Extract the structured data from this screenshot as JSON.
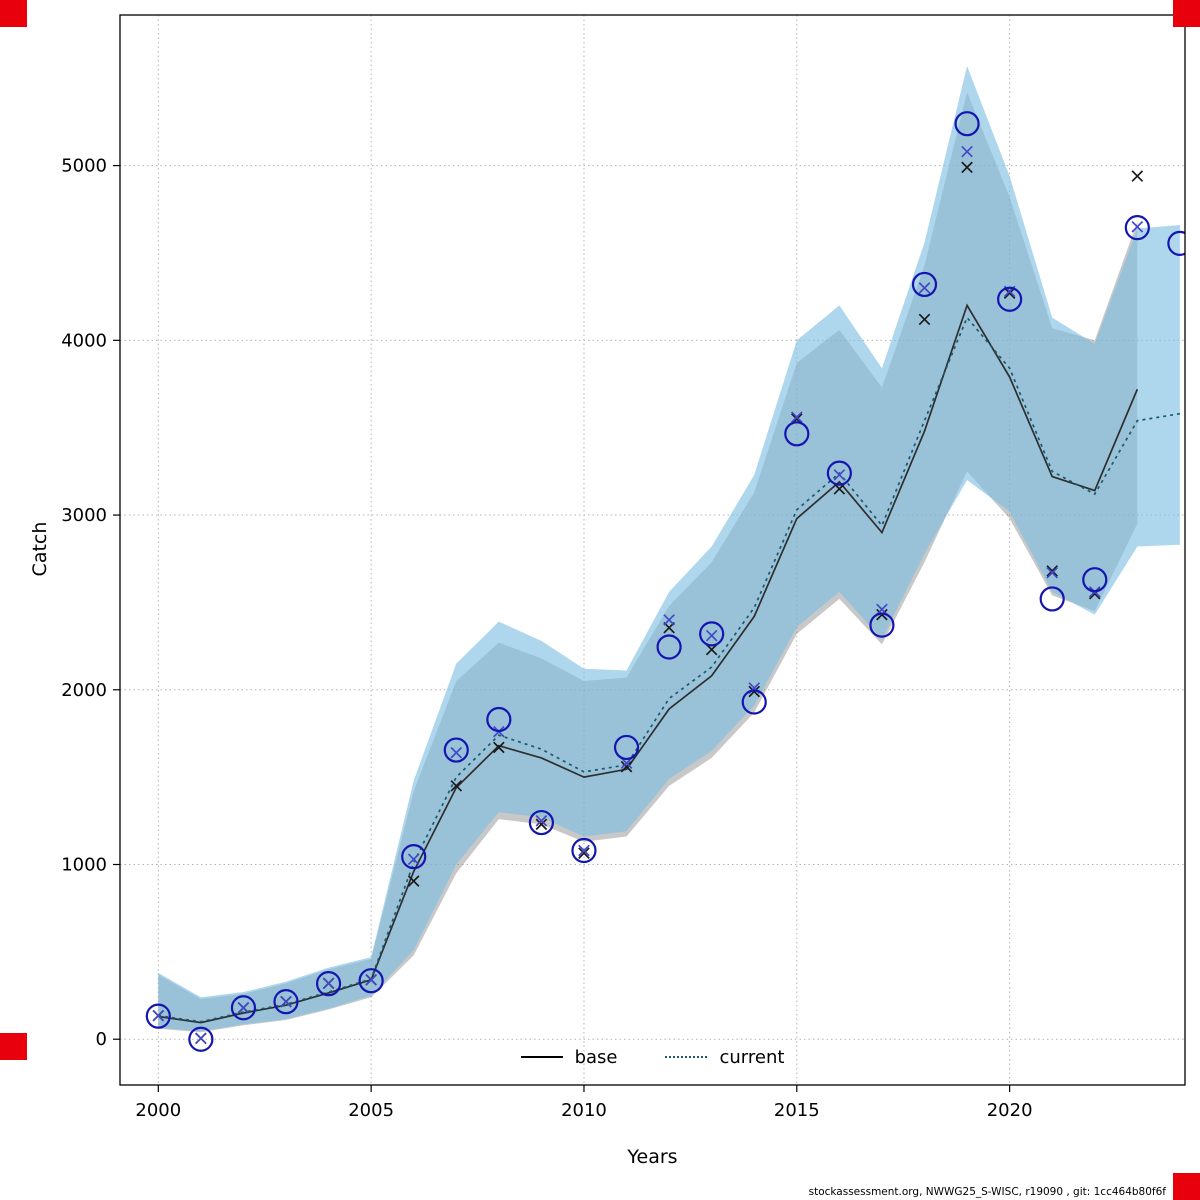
{
  "figure": {
    "footer": "stockassessment.org, NWWG25_S-WISC, r19090 , git: 1cc464b80f6f",
    "background": "#ffffff"
  },
  "markers": {
    "color": "#e8000d"
  },
  "chart_data": {
    "type": "line",
    "title": "",
    "xlabel": "Years",
    "ylabel": "Catch",
    "grid": "dotted",
    "legend_position": "bottom-center",
    "xlim": [
      1999.1,
      2024.12
    ],
    "ylim": [
      -262,
      5862
    ],
    "x_ticks": [
      2000,
      2005,
      2010,
      2015,
      2020
    ],
    "y_ticks": [
      0,
      1000,
      2000,
      3000,
      4000,
      5000
    ],
    "legend": [
      {
        "label": "base",
        "style": "solid",
        "color": "#000000"
      },
      {
        "label": "current",
        "style": "dotted",
        "color": "#195a6e"
      }
    ],
    "bands": [
      {
        "name": "base_ci",
        "color": "rgba(125,125,125,0.42)",
        "x": [
          2000,
          2001,
          2002,
          2003,
          2004,
          2005,
          2006,
          2007,
          2008,
          2009,
          2010,
          2011,
          2012,
          2013,
          2014,
          2015,
          2016,
          2017,
          2018,
          2019,
          2020,
          2021,
          2022,
          2023
        ],
        "lo": [
          60,
          40,
          80,
          110,
          170,
          240,
          480,
          950,
          1260,
          1230,
          1130,
          1160,
          1450,
          1610,
          1870,
          2320,
          2520,
          2260,
          2730,
          3250,
          2980,
          2540,
          2450,
          2950
        ],
        "hi": [
          370,
          230,
          260,
          320,
          400,
          460,
          1420,
          2050,
          2270,
          2180,
          2050,
          2070,
          2480,
          2730,
          3130,
          3870,
          4060,
          3730,
          4430,
          5420,
          4820,
          4070,
          4000,
          4680
        ]
      },
      {
        "name": "current_ci",
        "color": "rgba(125,190,228,0.62)",
        "x": [
          2000,
          2001,
          2002,
          2003,
          2004,
          2005,
          2006,
          2007,
          2008,
          2009,
          2010,
          2011,
          2012,
          2013,
          2014,
          2015,
          2016,
          2017,
          2018,
          2019,
          2020,
          2021,
          2022,
          2023,
          2024
        ],
        "lo": [
          65,
          45,
          85,
          115,
          175,
          250,
          510,
          1000,
          1300,
          1270,
          1160,
          1190,
          1490,
          1650,
          1910,
          2360,
          2560,
          2290,
          2780,
          3200,
          3020,
          2560,
          2430,
          2820,
          2830
        ],
        "hi": [
          380,
          240,
          270,
          330,
          410,
          470,
          1480,
          2150,
          2390,
          2280,
          2120,
          2110,
          2560,
          2820,
          3230,
          4000,
          4200,
          3840,
          4560,
          5570,
          4940,
          4130,
          3980,
          4640,
          4660
        ]
      }
    ],
    "series": [
      {
        "name": "base_estimate",
        "style": "solid",
        "color": "#2e2e2e",
        "x": [
          2000,
          2001,
          2002,
          2003,
          2004,
          2005,
          2006,
          2007,
          2008,
          2009,
          2010,
          2011,
          2012,
          2013,
          2014,
          2015,
          2016,
          2017,
          2018,
          2019,
          2020,
          2021,
          2022,
          2023
        ],
        "values": [
          130,
          95,
          150,
          195,
          265,
          340,
          960,
          1440,
          1680,
          1610,
          1500,
          1545,
          1890,
          2080,
          2420,
          2980,
          3190,
          2900,
          3480,
          4200,
          3790,
          3220,
          3140,
          3720
        ]
      },
      {
        "name": "current_estimate",
        "style": "dotted",
        "color": "#195a6e",
        "x": [
          2000,
          2001,
          2002,
          2003,
          2004,
          2005,
          2006,
          2007,
          2008,
          2009,
          2010,
          2011,
          2012,
          2013,
          2014,
          2015,
          2016,
          2017,
          2018,
          2019,
          2020,
          2021,
          2022,
          2023,
          2024
        ],
        "values": [
          135,
          100,
          155,
          200,
          270,
          345,
          1010,
          1500,
          1740,
          1660,
          1530,
          1570,
          1950,
          2130,
          2470,
          3030,
          3240,
          2940,
          3540,
          4130,
          3840,
          3250,
          3120,
          3540,
          3580
        ]
      }
    ],
    "points": [
      {
        "name": "base_obs",
        "marker": "x",
        "color": "#1a1a1a",
        "x": [
          2000,
          2001,
          2002,
          2003,
          2004,
          2005,
          2006,
          2007,
          2008,
          2009,
          2010,
          2011,
          2012,
          2013,
          2014,
          2015,
          2016,
          2017,
          2018,
          2019,
          2020,
          2021,
          2022,
          2023
        ],
        "values": [
          135,
          5,
          180,
          215,
          320,
          340,
          905,
          1450,
          1670,
          1230,
          1065,
          1560,
          2355,
          2230,
          1990,
          3550,
          3150,
          2430,
          4120,
          4990,
          4270,
          2680,
          2550,
          4940
        ]
      },
      {
        "name": "current_obs_x",
        "marker": "x",
        "color": "#4348c6",
        "x": [
          2000,
          2001,
          2002,
          2003,
          2004,
          2005,
          2006,
          2007,
          2008,
          2009,
          2010,
          2011,
          2012,
          2013,
          2014,
          2015,
          2016,
          2017,
          2018,
          2019,
          2020,
          2021,
          2022,
          2023
        ],
        "values": [
          135,
          5,
          180,
          215,
          320,
          340,
          1030,
          1640,
          1760,
          1250,
          1080,
          1580,
          2400,
          2310,
          2010,
          3560,
          3230,
          2460,
          4300,
          5080,
          4280,
          2670,
          2560,
          4650
        ]
      },
      {
        "name": "current_obs_circle",
        "marker": "circle",
        "color": "#1515b0",
        "x": [
          2000,
          2001,
          2002,
          2003,
          2004,
          2005,
          2006,
          2007,
          2008,
          2009,
          2010,
          2011,
          2012,
          2013,
          2014,
          2015,
          2016,
          2017,
          2018,
          2019,
          2020,
          2021,
          2022,
          2023,
          2024
        ],
        "values": [
          132,
          0,
          180,
          215,
          318,
          335,
          1045,
          1655,
          1830,
          1240,
          1080,
          1670,
          2245,
          2320,
          1930,
          3465,
          3240,
          2370,
          4320,
          5240,
          4235,
          2520,
          2630,
          4645,
          4555
        ]
      }
    ]
  }
}
